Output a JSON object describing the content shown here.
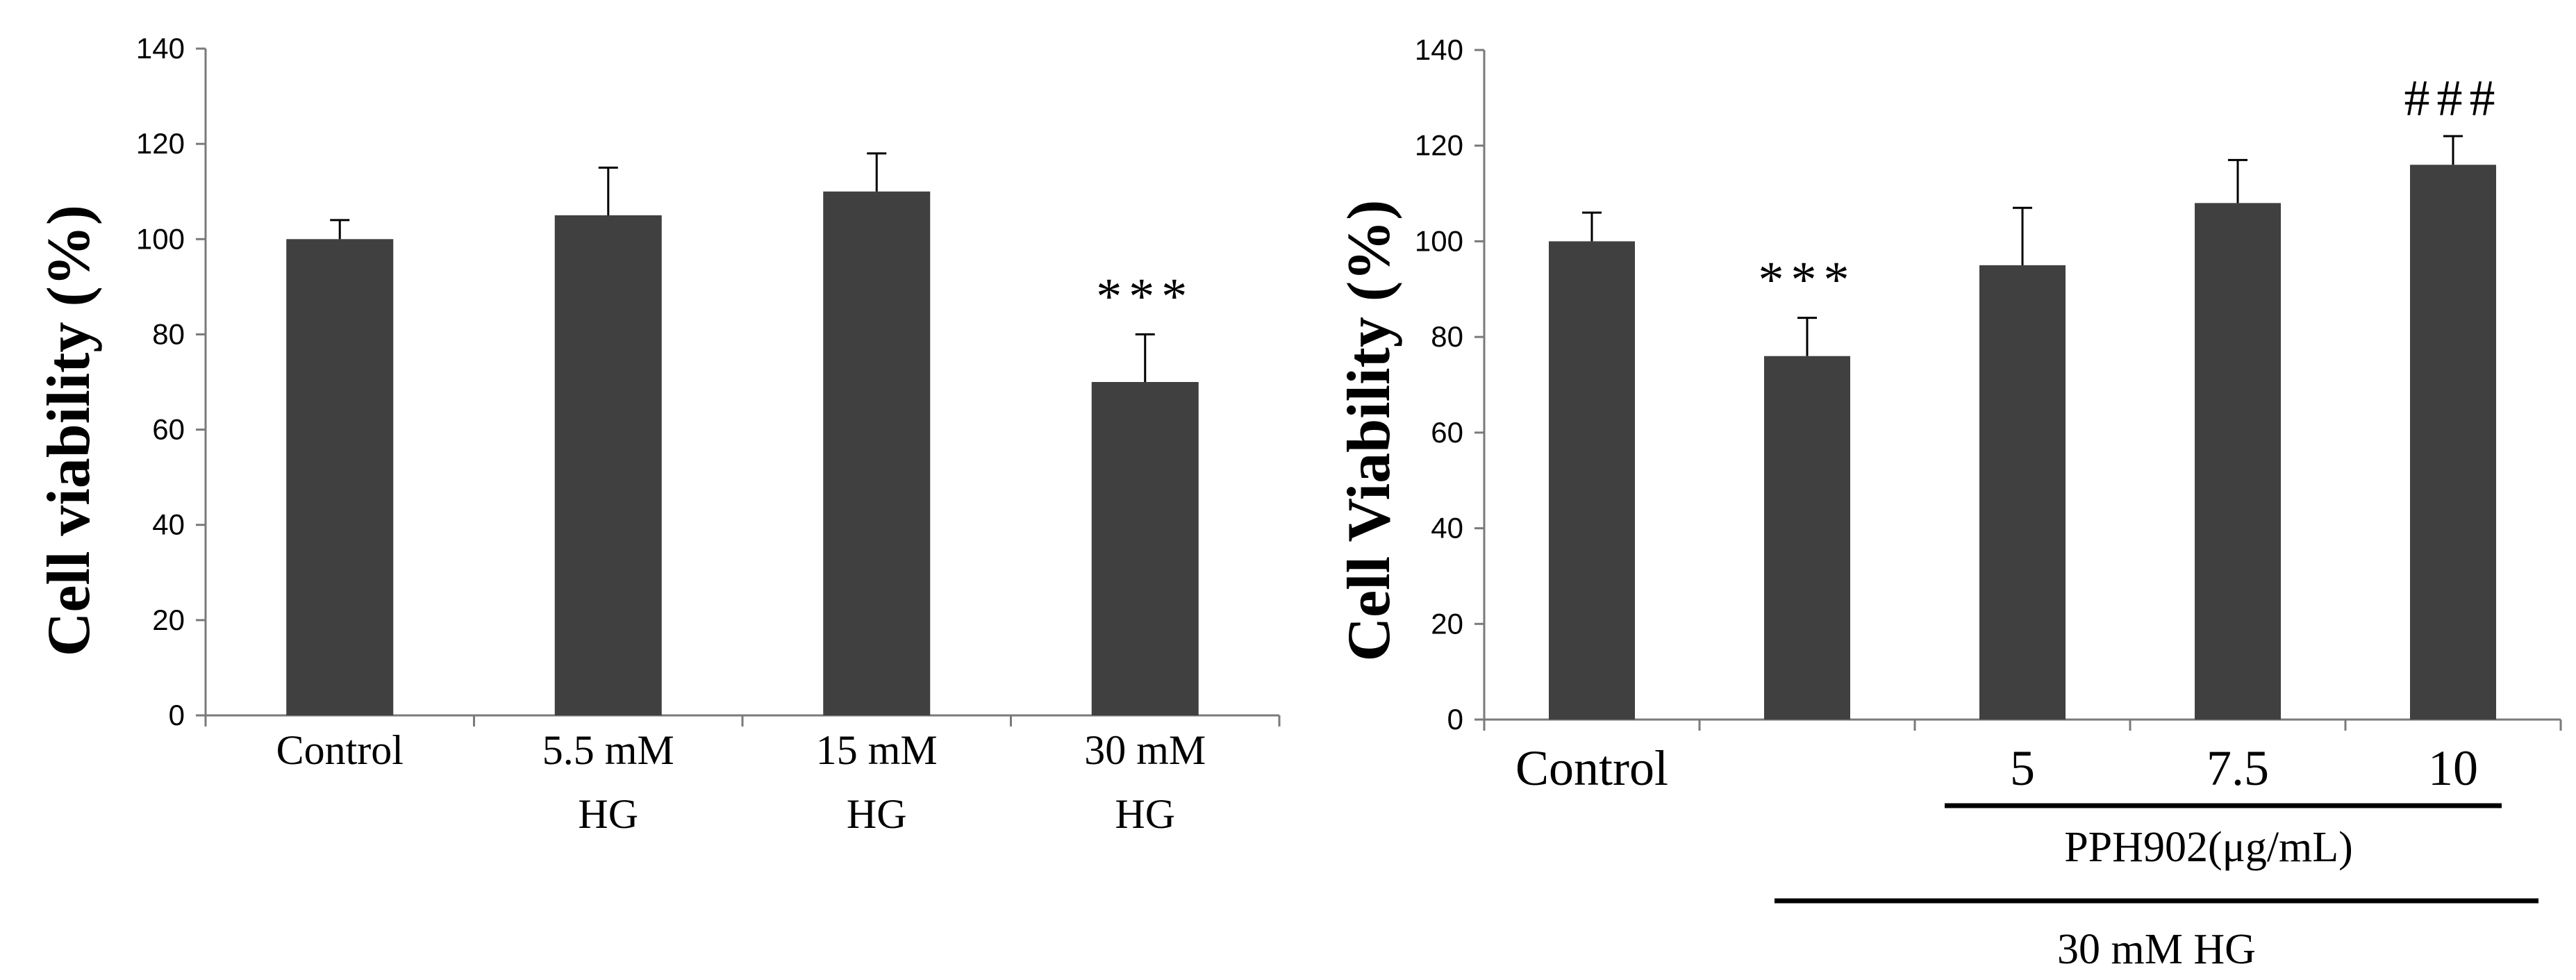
{
  "chart_data": [
    {
      "type": "bar",
      "ylabel": "Cell viability (%)",
      "ylim": [
        0,
        140
      ],
      "yticks": [
        "0",
        "20",
        "40",
        "60",
        "80",
        "100",
        "120",
        "140"
      ],
      "categories": [
        [
          "Control"
        ],
        [
          "5.5 mM",
          "HG"
        ],
        [
          "15 mM",
          "HG"
        ],
        [
          "30 mM",
          "HG"
        ]
      ],
      "values": [
        100,
        105,
        110,
        70
      ],
      "errors": [
        4,
        10,
        8,
        10
      ],
      "annotations": [
        "",
        "",
        "",
        "***"
      ],
      "bar_color": "#404040",
      "grid": false
    },
    {
      "type": "bar",
      "ylabel": "Cell Viability (%)",
      "ylim": [
        0,
        140
      ],
      "yticks": [
        "0",
        "20",
        "40",
        "60",
        "80",
        "100",
        "120",
        "140"
      ],
      "categories": [
        [
          "Control"
        ],
        [
          ""
        ],
        [
          "5"
        ],
        [
          "7.5"
        ],
        [
          "10"
        ]
      ],
      "values": [
        100,
        76,
        95,
        108,
        116
      ],
      "errors": [
        6,
        8,
        12,
        9,
        6
      ],
      "annotations": [
        "",
        "***",
        "",
        "",
        "###"
      ],
      "bar_color": "#404040",
      "grid": false,
      "group_labels": [
        "PPH902(μg/mL)",
        "30 mM HG"
      ]
    }
  ]
}
